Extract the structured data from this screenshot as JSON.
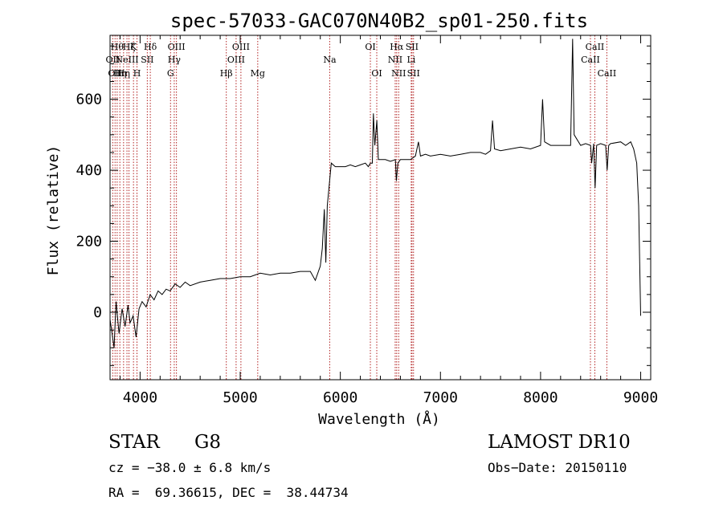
{
  "chart_data": {
    "type": "line",
    "title": "spec-57033-GAC070N40B2_sp01-250.fits",
    "xlabel": "Wavelength (Å)",
    "ylabel": "Flux (relative)",
    "xlim": [
      3700,
      9100
    ],
    "ylim": [
      -190,
      780
    ],
    "xticks": [
      4000,
      5000,
      6000,
      7000,
      8000,
      9000
    ],
    "yticks": [
      0,
      200,
      400,
      600
    ],
    "line_color": "#000000",
    "marker_color": "#b22222",
    "spectrum_points": [
      [
        3700,
        -20
      ],
      [
        3740,
        -100
      ],
      [
        3760,
        30
      ],
      [
        3790,
        -60
      ],
      [
        3820,
        10
      ],
      [
        3850,
        -40
      ],
      [
        3880,
        20
      ],
      [
        3900,
        -30
      ],
      [
        3930,
        -10
      ],
      [
        3960,
        -70
      ],
      [
        3990,
        10
      ],
      [
        4020,
        30
      ],
      [
        4060,
        15
      ],
      [
        4100,
        50
      ],
      [
        4140,
        35
      ],
      [
        4180,
        60
      ],
      [
        4220,
        50
      ],
      [
        4260,
        65
      ],
      [
        4300,
        60
      ],
      [
        4350,
        80
      ],
      [
        4400,
        70
      ],
      [
        4450,
        85
      ],
      [
        4500,
        75
      ],
      [
        4600,
        85
      ],
      [
        4700,
        90
      ],
      [
        4800,
        95
      ],
      [
        4900,
        95
      ],
      [
        5000,
        100
      ],
      [
        5100,
        100
      ],
      [
        5200,
        110
      ],
      [
        5300,
        105
      ],
      [
        5400,
        110
      ],
      [
        5500,
        110
      ],
      [
        5600,
        115
      ],
      [
        5700,
        115
      ],
      [
        5750,
        90
      ],
      [
        5800,
        130
      ],
      [
        5820,
        180
      ],
      [
        5840,
        290
      ],
      [
        5855,
        140
      ],
      [
        5870,
        300
      ],
      [
        5890,
        360
      ],
      [
        5910,
        420
      ],
      [
        5950,
        410
      ],
      [
        6000,
        410
      ],
      [
        6050,
        410
      ],
      [
        6100,
        415
      ],
      [
        6150,
        410
      ],
      [
        6200,
        415
      ],
      [
        6250,
        420
      ],
      [
        6280,
        410
      ],
      [
        6300,
        420
      ],
      [
        6320,
        420
      ],
      [
        6330,
        560
      ],
      [
        6345,
        470
      ],
      [
        6365,
        540
      ],
      [
        6380,
        430
      ],
      [
        6400,
        430
      ],
      [
        6450,
        430
      ],
      [
        6500,
        425
      ],
      [
        6550,
        430
      ],
      [
        6560,
        370
      ],
      [
        6575,
        420
      ],
      [
        6600,
        430
      ],
      [
        6650,
        430
      ],
      [
        6700,
        430
      ],
      [
        6750,
        440
      ],
      [
        6780,
        480
      ],
      [
        6800,
        440
      ],
      [
        6850,
        445
      ],
      [
        6900,
        440
      ],
      [
        7000,
        445
      ],
      [
        7100,
        440
      ],
      [
        7200,
        445
      ],
      [
        7300,
        450
      ],
      [
        7400,
        450
      ],
      [
        7450,
        445
      ],
      [
        7500,
        455
      ],
      [
        7520,
        540
      ],
      [
        7540,
        460
      ],
      [
        7600,
        455
      ],
      [
        7700,
        460
      ],
      [
        7800,
        465
      ],
      [
        7900,
        460
      ],
      [
        8000,
        470
      ],
      [
        8020,
        600
      ],
      [
        8040,
        480
      ],
      [
        8100,
        470
      ],
      [
        8200,
        470
      ],
      [
        8300,
        470
      ],
      [
        8320,
        770
      ],
      [
        8335,
        500
      ],
      [
        8400,
        470
      ],
      [
        8450,
        475
      ],
      [
        8500,
        470
      ],
      [
        8510,
        420
      ],
      [
        8530,
        475
      ],
      [
        8545,
        350
      ],
      [
        8560,
        470
      ],
      [
        8600,
        475
      ],
      [
        8650,
        470
      ],
      [
        8665,
        400
      ],
      [
        8680,
        470
      ],
      [
        8700,
        475
      ],
      [
        8800,
        480
      ],
      [
        8850,
        470
      ],
      [
        8900,
        480
      ],
      [
        8930,
        460
      ],
      [
        8960,
        420
      ],
      [
        8980,
        300
      ],
      [
        9000,
        -10
      ]
    ],
    "line_markers": [
      {
        "wl": 3727,
        "label": "OII",
        "row": 2
      },
      {
        "wl": 3750,
        "label": "OII",
        "row": 3
      },
      {
        "wl": 3771,
        "label": "Hθ",
        "row": 1
      },
      {
        "wl": 3798,
        "label": "Hη",
        "row": 3
      },
      {
        "wl": 3835,
        "label": "Hη",
        "row": 3
      },
      {
        "wl": 3869,
        "label": "NeIII",
        "row": 2
      },
      {
        "wl": 3889,
        "label": "Hζ",
        "row": 1
      },
      {
        "wl": 3934,
        "label": "K",
        "row": 1
      },
      {
        "wl": 3969,
        "label": "H",
        "row": 3
      },
      {
        "wl": 4072,
        "label": "SII",
        "row": 2
      },
      {
        "wl": 4102,
        "label": "Hδ",
        "row": 1
      },
      {
        "wl": 4304,
        "label": "G",
        "row": 3
      },
      {
        "wl": 4341,
        "label": "Hγ",
        "row": 2
      },
      {
        "wl": 4363,
        "label": "OIII",
        "row": 1
      },
      {
        "wl": 4861,
        "label": "Hβ",
        "row": 3
      },
      {
        "wl": 4959,
        "label": "OIII",
        "row": 2
      },
      {
        "wl": 5007,
        "label": "OIII",
        "row": 1
      },
      {
        "wl": 5175,
        "label": "Mg",
        "row": 3
      },
      {
        "wl": 5894,
        "label": "Na",
        "row": 2
      },
      {
        "wl": 6300,
        "label": "OI",
        "row": 1
      },
      {
        "wl": 6364,
        "label": "OI",
        "row": 3
      },
      {
        "wl": 6548,
        "label": "NII",
        "row": 2
      },
      {
        "wl": 6563,
        "label": "Hα",
        "row": 1
      },
      {
        "wl": 6583,
        "label": "NII",
        "row": 3
      },
      {
        "wl": 6708,
        "label": "Li",
        "row": 2
      },
      {
        "wl": 6716,
        "label": "SII",
        "row": 1
      },
      {
        "wl": 6731,
        "label": "SII",
        "row": 3
      },
      {
        "wl": 8498,
        "label": "CaII",
        "row": 2
      },
      {
        "wl": 8542,
        "label": "CaII",
        "row": 1
      },
      {
        "wl": 8662,
        "label": "CaII",
        "row": 3
      }
    ]
  },
  "info": {
    "object_type": "STAR",
    "subclass": "G8",
    "survey": "LAMOST DR10",
    "cz": "cz = −38.0 ± 6.8 km/s",
    "obs_date": "Obs−Date: 20150110",
    "radec": "RA =  69.36615, DEC =  38.44734"
  }
}
